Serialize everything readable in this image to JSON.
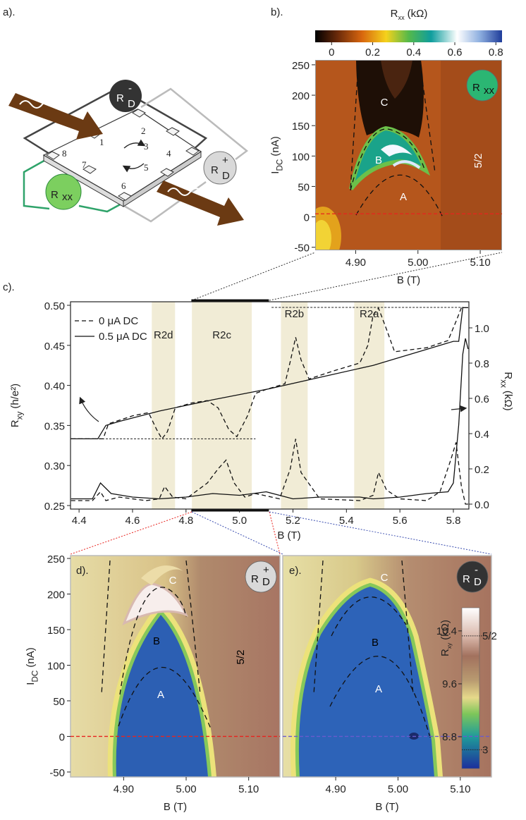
{
  "panel_labels": [
    "a).",
    "b).",
    "c).",
    "d).",
    "e)."
  ],
  "diagram": {
    "contacts": [
      "1",
      "2",
      "3",
      "4",
      "5",
      "6",
      "7",
      "8"
    ],
    "rd_minus": {
      "main": "R",
      "sub": "D",
      "sup": "-"
    },
    "rd_plus": {
      "main": "R",
      "sub": "D",
      "sup": "+"
    },
    "rxx": {
      "main": "R",
      "sub": "xx"
    }
  },
  "chart_data": [
    {
      "type": "heatmap",
      "xlabel": "B (T)",
      "ylabel": {
        "main": "I",
        "sub": "DC",
        "unit": "(nA)"
      },
      "xlim": [
        4.835,
        5.135
      ],
      "ylim": [
        -55,
        258
      ],
      "xticks": [
        {
          "value": 4.9,
          "label": "4.90"
        },
        {
          "value": 5,
          "label": "5.00"
        },
        {
          "value": 5.1,
          "label": "5.10"
        }
      ],
      "yticks": [
        -50,
        0,
        50,
        100,
        150,
        200,
        250
      ],
      "region_labels": [
        "A",
        "B",
        "C",
        "5/2"
      ],
      "badge": {
        "main": "R",
        "sub": "xx"
      },
      "cut_line": {
        "value": 5,
        "color": "#e8231e"
      },
      "colorbar": {
        "label": {
          "main": "R",
          "sub": "xx",
          "unit": "(kΩ)"
        },
        "lim": [
          -0.08,
          0.83
        ],
        "ticks": [
          0,
          0.2,
          0.4,
          0.6,
          0.8
        ],
        "orientation": "horizontal"
      }
    },
    {
      "type": "line",
      "xlabel": "B (T)",
      "ylabel": {
        "main": "R",
        "sub": "xy",
        "unit": "(h/e²)"
      },
      "y2label": {
        "main": "R",
        "sub": "xx",
        "unit": "(kΩ)"
      },
      "xlim": [
        4.368,
        5.858
      ],
      "xticks": [
        4.4,
        4.6,
        4.8,
        {
          "value": 5,
          "label": "5.0"
        },
        5.2,
        5.4,
        5.6,
        5.8
      ],
      "ylim": [
        0.2456,
        0.5044
      ],
      "yticks": [
        0.25,
        {
          "value": 0.3,
          "label": "0.30"
        },
        0.35,
        {
          "value": 0.4,
          "label": "0.40"
        },
        0.45,
        {
          "value": 0.5,
          "label": "0.50"
        }
      ],
      "y2lim": [
        -0.028,
        1.148
      ],
      "y2ticks": [
        {
          "value": 0,
          "label": "0.0"
        },
        0.2,
        0.4,
        0.6,
        0.8,
        {
          "value": 1,
          "label": "1.0"
        }
      ],
      "zoom": [
        4.82,
        5.11
      ],
      "regions": [
        {
          "label": "R2d",
          "start": 4.672,
          "end": 4.759
        },
        {
          "label": "R2c",
          "start": 4.822,
          "end": 5.046
        },
        {
          "label": "R2b",
          "start": 5.155,
          "end": 5.255
        },
        {
          "label": "R2a",
          "start": 5.429,
          "end": 5.542
        }
      ],
      "reference_lines": [
        {
          "value": 0.3333,
          "from": 4.368,
          "to": 5.06
        },
        {
          "value": 0.4974,
          "from": 5.12,
          "to": 5.846
        }
      ],
      "series": [
        {
          "name": "0 μA DC",
          "line_style": "dashed",
          "color": "#111111",
          "rxy": {
            "x": [
              4.37,
              4.49,
              4.51,
              4.6,
              4.66,
              4.69,
              4.71,
              4.73,
              4.76,
              4.82,
              4.88,
              4.92,
              4.96,
              4.99,
              5.03,
              5.06,
              5.1,
              5.17,
              5.19,
              5.21,
              5.23,
              5.26,
              5.35,
              5.45,
              5.48,
              5.5,
              5.52,
              5.55,
              5.58,
              5.7,
              5.78,
              5.81,
              5.83,
              5.855
            ],
            "values": [
              0.3333,
              0.3333,
              0.352,
              0.362,
              0.366,
              0.345,
              0.3333,
              0.342,
              0.372,
              0.378,
              0.381,
              0.372,
              0.345,
              0.336,
              0.362,
              0.39,
              0.395,
              0.402,
              0.43,
              0.46,
              0.432,
              0.408,
              0.418,
              0.428,
              0.45,
              0.488,
              0.4965,
              0.47,
              0.442,
              0.447,
              0.456,
              0.48,
              0.497,
              0.497
            ]
          },
          "rxx": {
            "axis": "y2",
            "x": [
              4.37,
              4.45,
              4.48,
              4.5,
              4.55,
              4.65,
              4.7,
              4.72,
              4.75,
              4.8,
              4.88,
              4.92,
              4.95,
              4.98,
              5.02,
              5.06,
              5.15,
              5.19,
              5.21,
              5.23,
              5.3,
              5.45,
              5.5,
              5.52,
              5.55,
              5.6,
              5.7,
              5.75,
              5.79,
              5.81,
              5.83,
              5.845,
              5.855
            ],
            "values": [
              0.02,
              0.02,
              0.07,
              0.02,
              0.04,
              0.02,
              0.03,
              0.1,
              0.04,
              0.03,
              0.12,
              0.2,
              0.25,
              0.12,
              0.04,
              0.06,
              0.03,
              0.2,
              0.37,
              0.18,
              0.03,
              0.02,
              0.05,
              0.18,
              0.08,
              0.03,
              0.02,
              0.07,
              0.25,
              0.35,
              0.1,
              0.0,
              0.0
            ]
          }
        },
        {
          "name": "0.5 μA DC",
          "line_style": "solid",
          "color": "#111111",
          "rxy": {
            "x": [
              4.37,
              4.47,
              4.5,
              4.55,
              4.7,
              4.9,
              5.1,
              5.3,
              5.5,
              5.7,
              5.8,
              5.82,
              5.835,
              5.855
            ],
            "values": [
              0.3333,
              0.3333,
              0.35,
              0.355,
              0.368,
              0.382,
              0.395,
              0.41,
              0.425,
              0.445,
              0.455,
              0.455,
              0.497,
              0.497
            ]
          },
          "rxx": {
            "axis": "y2",
            "x": [
              4.37,
              4.45,
              4.48,
              4.52,
              4.6,
              4.7,
              4.8,
              4.9,
              5.0,
              5.1,
              5.2,
              5.3,
              5.45,
              5.5,
              5.6,
              5.7,
              5.78,
              5.8,
              5.82,
              5.835,
              5.845,
              5.855
            ],
            "values": [
              0.03,
              0.03,
              0.12,
              0.06,
              0.04,
              0.03,
              0.04,
              0.06,
              0.05,
              0.07,
              0.03,
              0.04,
              0.04,
              0.03,
              0.04,
              0.06,
              0.07,
              0.12,
              0.45,
              0.85,
              0.94,
              0.88
            ]
          }
        }
      ]
    },
    {
      "type": "heatmap",
      "xlabel": "B (T)",
      "ylabel": {
        "main": "I",
        "sub": "DC",
        "unit": "(nA)"
      },
      "xlim": [
        4.815,
        5.15
      ],
      "ylim": [
        -57,
        254
      ],
      "xticks": [
        {
          "value": 4.9,
          "label": "4.90"
        },
        {
          "value": 5,
          "label": "5.00"
        },
        {
          "value": 5.1,
          "label": "5.10"
        }
      ],
      "yticks": [
        -50,
        0,
        50,
        100,
        150,
        200,
        250
      ],
      "region_labels": [
        "A",
        "B",
        "C",
        "5/2"
      ],
      "badge": {
        "main": "R",
        "sub": "D",
        "sup": "+"
      },
      "cut_line": {
        "value": 0,
        "color": "#e8231e"
      }
    },
    {
      "type": "heatmap",
      "xlabel": "B (T)",
      "xlim": [
        4.815,
        5.15
      ],
      "ylim": [
        -57,
        254
      ],
      "xticks": [
        {
          "value": 4.9,
          "label": "4.90"
        },
        {
          "value": 5,
          "label": "5.00"
        },
        {
          "value": 5.1,
          "label": "5.10"
        }
      ],
      "region_labels": [
        "A",
        "B",
        "C"
      ],
      "badge": {
        "main": "R",
        "sub": "D",
        "sup": "-"
      },
      "cut_line": {
        "value": 0,
        "color": "#6a5acd"
      },
      "colorbar": {
        "label": {
          "main": "R",
          "sub": "xy",
          "unit": "(kΩ)"
        },
        "lim": [
          8.32,
          10.75
        ],
        "ticks": [
          8.8,
          9.6,
          10.4
        ],
        "markers": [
          {
            "value": 10.325,
            "label": "5/2"
          },
          {
            "value": 8.604,
            "label": "3"
          }
        ],
        "orientation": "vertical"
      }
    }
  ]
}
